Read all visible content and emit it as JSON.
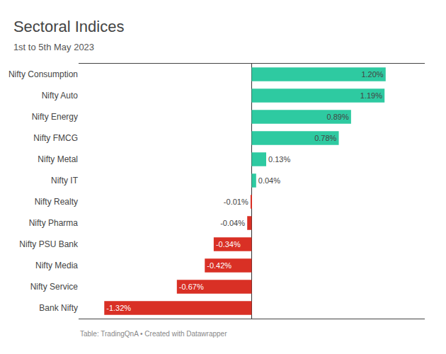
{
  "chart_data": {
    "type": "bar",
    "orientation": "horizontal",
    "title": "Sectoral Indices",
    "subtitle": "1st to 5th May 2023",
    "annotations": [
      "Table: TradingQnA • Created with Datawrapper"
    ],
    "categories": [
      "Nifty Consumption",
      "Nifty Auto",
      "Nifty Energy",
      "Nifty FMCG",
      "Nifty Metal",
      "Nifty IT",
      "Nifty Realty",
      "Nifty Pharma",
      "Nifty PSU Bank",
      "Nifty Media",
      "Nifty Service",
      "Bank Nifty"
    ],
    "values": [
      1.2,
      1.19,
      0.89,
      0.78,
      0.13,
      0.04,
      -0.01,
      -0.04,
      -0.34,
      -0.42,
      -0.67,
      -1.32
    ],
    "value_labels": [
      "1.20%",
      "1.19%",
      "0.89%",
      "0.78%",
      "0.13%",
      "0.04%",
      "-0.01%",
      "-0.04%",
      "-0.34%",
      "-0.42%",
      "-0.67%",
      "-1.32%"
    ],
    "colors": [
      "#2ECAA1",
      "#2ECAA1",
      "#2ECAA1",
      "#2ECAA1",
      "#2ECAA1",
      "#2ECAA1",
      "#D93025",
      "#D93025",
      "#D93025",
      "#D93025",
      "#D93025",
      "#D93025"
    ],
    "xlim": [
      -1.55,
      1.55
    ],
    "data_labels": true,
    "tick_labels": "y",
    "grid": false
  }
}
